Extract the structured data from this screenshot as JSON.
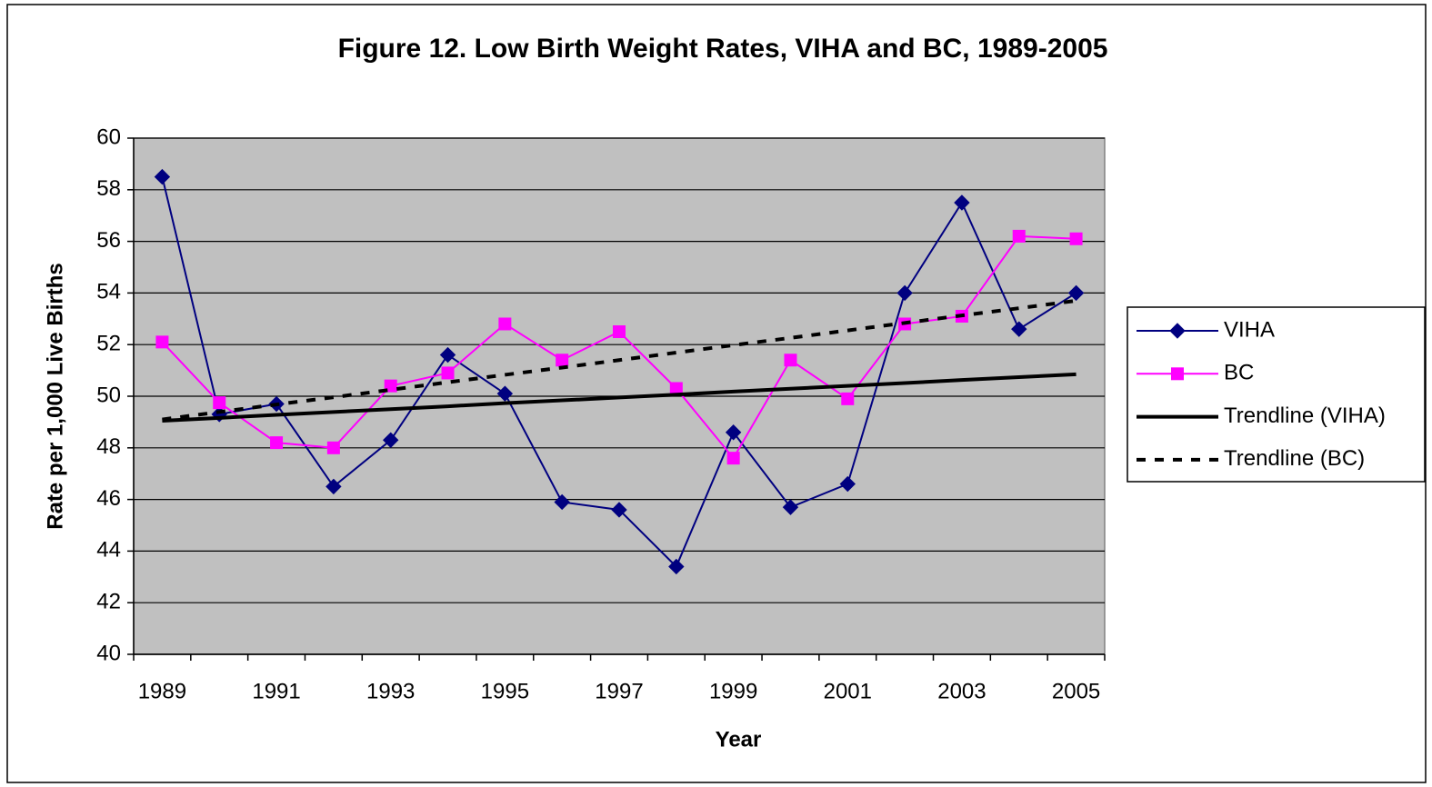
{
  "chart_data": {
    "type": "line",
    "title": "Figure 12. Low Birth Weight Rates, VIHA and BC, 1989-2005",
    "x_label": "Year",
    "y_label": "Rate per 1,000 Live Births",
    "categories": [
      "1989",
      null,
      "1991",
      null,
      "1993",
      null,
      "1995",
      null,
      "1997",
      null,
      "1999",
      null,
      "2001",
      null,
      "2003",
      null,
      "2005"
    ],
    "ylim": [
      40,
      60
    ],
    "yticks": [
      40,
      42,
      44,
      46,
      48,
      50,
      52,
      54,
      56,
      58,
      60
    ],
    "grid": true,
    "legend": "right",
    "series": [
      {
        "name": "VIHA",
        "color": "#000080",
        "marker": "diamond",
        "dash": false,
        "values": [
          58.5,
          49.3,
          49.7,
          46.5,
          48.3,
          51.6,
          50.1,
          45.9,
          45.6,
          43.4,
          48.6,
          45.7,
          46.6,
          54.0,
          57.5,
          52.6,
          54.0
        ]
      },
      {
        "name": "BC",
        "color": "#FF00FF",
        "marker": "square",
        "dash": false,
        "values": [
          52.1,
          49.75,
          48.2,
          48.0,
          50.4,
          50.9,
          52.8,
          51.4,
          52.5,
          50.3,
          47.6,
          51.4,
          49.9,
          52.8,
          53.1,
          56.2,
          56.1
        ]
      },
      {
        "name": "Trendline (VIHA)",
        "color": "#000000",
        "marker": "none",
        "dash": false,
        "values": [
          49.05,
          49.16,
          49.28,
          49.39,
          49.5,
          49.61,
          49.73,
          49.84,
          49.95,
          50.06,
          50.18,
          50.29,
          50.4,
          50.51,
          50.63,
          50.74,
          50.85
        ]
      },
      {
        "name": "Trendline (BC)",
        "color": "#000000",
        "marker": "none",
        "dash": true,
        "values": [
          49.1,
          49.39,
          49.68,
          49.96,
          50.25,
          50.54,
          50.83,
          51.11,
          51.4,
          51.69,
          51.98,
          52.26,
          52.55,
          52.84,
          53.13,
          53.41,
          53.7
        ]
      }
    ]
  }
}
